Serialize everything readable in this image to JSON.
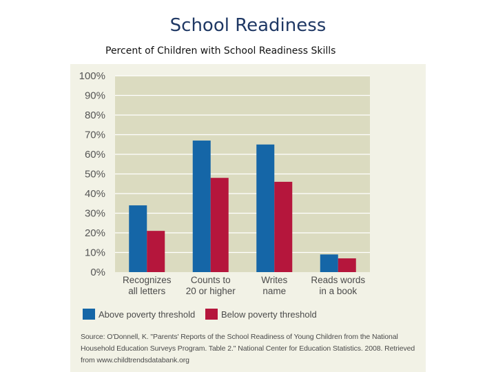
{
  "slide": {
    "title": "School Readiness",
    "subtitle": "Percent of Children with School Readiness Skills"
  },
  "chart_data": {
    "type": "bar",
    "categories": [
      [
        "Recognizes",
        "all letters"
      ],
      [
        "Counts to",
        "20 or higher"
      ],
      [
        "Writes",
        "name"
      ],
      [
        "Reads words",
        "in a book"
      ]
    ],
    "series": [
      {
        "name": "Above poverty threshold",
        "color": "#1566a7",
        "values": [
          34,
          67,
          65,
          9
        ]
      },
      {
        "name": "Below poverty threshold",
        "color": "#b5163c",
        "values": [
          21,
          48,
          46,
          7
        ]
      }
    ],
    "ylim": [
      0,
      100
    ],
    "yticks": [
      "0%",
      "10%",
      "20%",
      "30%",
      "40%",
      "50%",
      "60%",
      "70%",
      "80%",
      "90%",
      "100%"
    ],
    "grid": true,
    "legend": "bottom-left",
    "plot_background": "#dbdbc0",
    "source_lines": [
      "Source: O'Donnell, K. \"Parents' Reports of the School Readiness of Young Children from the National",
      "Household Education Surveys Program. Table 2.\" National Center for Education Statistics. 2008. Retrieved",
      "from www.childtrendsdatabank.org"
    ]
  }
}
